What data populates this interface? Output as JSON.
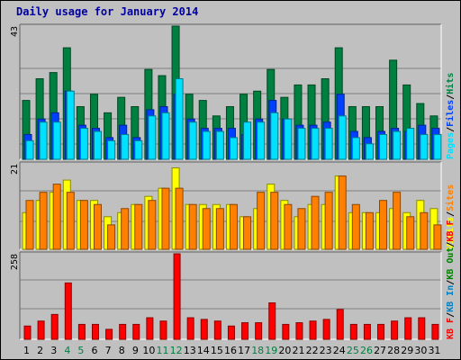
{
  "title": "Daily usage for January 2014",
  "colors": {
    "hits": "#008040",
    "files": "#0040ff",
    "pages": "#00e0ff",
    "visits": "#ffff00",
    "sites": "#ff8000",
    "kb_f": "#ff0000",
    "kb_in": "#0080c0",
    "kb_out": "#008000",
    "weekend_label": "#008040"
  },
  "chart_data": [
    {
      "type": "bar",
      "panel": "hits-files-pages",
      "axis_max_label": "43",
      "ylim": [
        0,
        43
      ],
      "legend": [
        "Pages",
        "/",
        "Files",
        "/",
        "Hits"
      ],
      "categories": [
        "1",
        "2",
        "3",
        "4",
        "5",
        "6",
        "7",
        "8",
        "9",
        "10",
        "11",
        "12",
        "13",
        "14",
        "15",
        "16",
        "17",
        "18",
        "19",
        "20",
        "21",
        "22",
        "23",
        "24",
        "25",
        "26",
        "27",
        "28",
        "29",
        "30",
        "31"
      ],
      "weekend_days": [
        "4",
        "5",
        "11",
        "12",
        "18",
        "19",
        "25",
        "26"
      ],
      "series": [
        {
          "name": "Hits",
          "values": [
            19,
            26,
            28,
            36,
            17,
            21,
            15,
            20,
            17,
            29,
            27,
            43,
            21,
            19,
            14,
            17,
            21,
            22,
            29,
            20,
            24,
            24,
            26,
            36,
            17,
            17,
            17,
            32,
            24,
            18,
            14
          ]
        },
        {
          "name": "Files",
          "values": [
            8,
            13,
            15,
            22,
            11,
            10,
            7,
            11,
            7,
            16,
            17,
            21,
            13,
            10,
            10,
            10,
            8,
            13,
            19,
            13,
            11,
            11,
            12,
            21,
            9,
            7,
            9,
            10,
            9,
            11,
            10
          ]
        },
        {
          "name": "Pages",
          "values": [
            6,
            12,
            12,
            22,
            10,
            9,
            6,
            8,
            6,
            14,
            15,
            26,
            12,
            9,
            9,
            7,
            12,
            12,
            15,
            13,
            10,
            10,
            10,
            14,
            7,
            5,
            8,
            9,
            10,
            8,
            8
          ]
        }
      ]
    },
    {
      "type": "bar",
      "panel": "visits-sites",
      "axis_max_label": "21",
      "ylim": [
        0,
        21
      ],
      "legend": [
        "Visits",
        "/",
        "Sites"
      ],
      "categories": [
        "1",
        "2",
        "3",
        "4",
        "5",
        "6",
        "7",
        "8",
        "9",
        "10",
        "11",
        "12",
        "13",
        "14",
        "15",
        "16",
        "17",
        "18",
        "19",
        "20",
        "21",
        "22",
        "23",
        "24",
        "25",
        "26",
        "27",
        "28",
        "29",
        "30",
        "31"
      ],
      "series": [
        {
          "name": "Visits",
          "values": [
            9,
            12,
            14,
            17,
            12,
            12,
            8,
            9,
            11,
            13,
            15,
            20,
            11,
            11,
            11,
            11,
            8,
            10,
            16,
            12,
            8,
            11,
            11,
            18,
            9,
            9,
            9,
            10,
            9,
            12,
            10
          ]
        },
        {
          "name": "Sites",
          "values": [
            12,
            14,
            16,
            14,
            12,
            11,
            6,
            10,
            11,
            12,
            15,
            15,
            11,
            10,
            10,
            11,
            8,
            14,
            14,
            11,
            10,
            13,
            14,
            18,
            11,
            9,
            12,
            14,
            8,
            9,
            6
          ]
        }
      ]
    },
    {
      "type": "bar",
      "panel": "kbytes",
      "axis_max_label": "258",
      "ylim": [
        0,
        258
      ],
      "legend": [
        "KB F",
        "/",
        "KB In",
        "/",
        "KB Out",
        "/",
        "KB F"
      ],
      "categories": [
        "1",
        "2",
        "3",
        "4",
        "5",
        "6",
        "7",
        "8",
        "9",
        "10",
        "11",
        "12",
        "13",
        "14",
        "15",
        "16",
        "17",
        "18",
        "19",
        "20",
        "21",
        "22",
        "23",
        "24",
        "25",
        "26",
        "27",
        "28",
        "29",
        "30",
        "31"
      ],
      "series": [
        {
          "name": "KB F",
          "values": [
            40,
            55,
            75,
            170,
            45,
            45,
            30,
            45,
            45,
            65,
            55,
            258,
            65,
            60,
            55,
            40,
            50,
            50,
            110,
            45,
            50,
            55,
            60,
            90,
            45,
            45,
            45,
            55,
            65,
            65,
            45
          ]
        }
      ]
    }
  ]
}
